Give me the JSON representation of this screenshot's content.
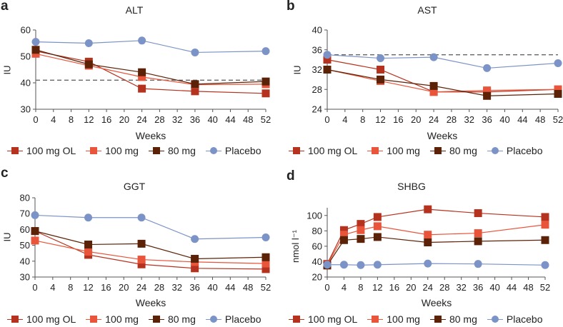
{
  "colors": {
    "100 mg OL": "#b5321e",
    "100 mg": "#e8553a",
    "80 mg": "#5c2208",
    "Placebo": "#7b93c6"
  },
  "legend": [
    {
      "label": "100 mg OL",
      "marker": "square"
    },
    {
      "label": "100 mg",
      "marker": "square"
    },
    {
      "label": "80 mg",
      "marker": "square"
    },
    {
      "label": "Placebo",
      "marker": "circle"
    }
  ],
  "chart_data": [
    {
      "panel": "a",
      "type": "line",
      "title": "ALT",
      "xlabel": "Weeks",
      "ylabel": "IU",
      "xlim": [
        0,
        52
      ],
      "xticks": [
        0,
        4,
        8,
        12,
        16,
        20,
        24,
        28,
        32,
        36,
        40,
        44,
        48,
        52
      ],
      "ylim": [
        30,
        60
      ],
      "yticks": [
        30,
        40,
        50,
        60
      ],
      "reference_line": 41,
      "x": [
        0,
        12,
        24,
        36,
        52
      ],
      "series": [
        {
          "name": "100 mg OL",
          "values": [
            52,
            48,
            37.8,
            36.8,
            36
          ]
        },
        {
          "name": "100 mg",
          "values": [
            51,
            46.5,
            42.2,
            39.3,
            39.5
          ]
        },
        {
          "name": "80 mg",
          "values": [
            52.5,
            47,
            44,
            39.5,
            40.5
          ]
        },
        {
          "name": "Placebo",
          "values": [
            55.5,
            55,
            56,
            51.5,
            52
          ]
        }
      ]
    },
    {
      "panel": "b",
      "type": "line",
      "title": "AST",
      "xlabel": "Weeks",
      "ylabel": "IU",
      "xlim": [
        0,
        52
      ],
      "xticks": [
        0,
        4,
        8,
        12,
        16,
        20,
        24,
        28,
        32,
        36,
        40,
        44,
        48,
        52
      ],
      "ylim": [
        24,
        40
      ],
      "yticks": [
        24,
        28,
        32,
        36,
        40
      ],
      "reference_line": 35,
      "x": [
        0,
        12,
        24,
        36,
        52
      ],
      "series": [
        {
          "name": "100 mg OL",
          "values": [
            34,
            32,
            27.5,
            27.5,
            28
          ]
        },
        {
          "name": "100 mg",
          "values": [
            32,
            29.7,
            27.5,
            27.8,
            28
          ]
        },
        {
          "name": "80 mg",
          "values": [
            32,
            30,
            28.7,
            26.7,
            27.1
          ]
        },
        {
          "name": "Placebo",
          "values": [
            35,
            34.3,
            34.5,
            32.3,
            33.3
          ]
        }
      ]
    },
    {
      "panel": "c",
      "type": "line",
      "title": "GGT",
      "xlabel": "Weeks",
      "ylabel": "IU",
      "xlim": [
        0,
        52
      ],
      "xticks": [
        0,
        4,
        8,
        12,
        16,
        20,
        24,
        28,
        32,
        36,
        40,
        44,
        48,
        52
      ],
      "ylim": [
        30,
        80
      ],
      "yticks": [
        30,
        40,
        50,
        60,
        70,
        80
      ],
      "x": [
        0,
        12,
        24,
        36,
        52
      ],
      "series": [
        {
          "name": "100 mg OL",
          "values": [
            59,
            44,
            38,
            35.5,
            35
          ]
        },
        {
          "name": "100 mg",
          "values": [
            53,
            46,
            41,
            39.5,
            38.5
          ]
        },
        {
          "name": "80 mg",
          "values": [
            59,
            50.5,
            51,
            41.5,
            42.5
          ]
        },
        {
          "name": "Placebo",
          "values": [
            69,
            67.5,
            67.5,
            54,
            55
          ]
        }
      ]
    },
    {
      "panel": "d",
      "type": "line",
      "title": "SHBG",
      "xlabel": "Weeks",
      "ylabel": "nmol l⁻¹",
      "xlim": [
        0,
        52
      ],
      "xticks": [
        0,
        4,
        8,
        12,
        16,
        20,
        24,
        28,
        32,
        36,
        40,
        44,
        48,
        52
      ],
      "ylim": [
        20,
        110
      ],
      "yticks": [
        20,
        40,
        60,
        80,
        100
      ],
      "x": [
        0,
        4,
        8,
        12,
        24,
        36,
        52
      ],
      "series": [
        {
          "name": "100 mg OL",
          "values": [
            37,
            81,
            89,
            98,
            108,
            103,
            98
          ]
        },
        {
          "name": "100 mg",
          "values": [
            36,
            75,
            81,
            86,
            75,
            77,
            88
          ]
        },
        {
          "name": "80 mg",
          "values": [
            35,
            68,
            69.5,
            72,
            65,
            66.5,
            68
          ]
        },
        {
          "name": "Placebo",
          "values": [
            36,
            36,
            35.5,
            36,
            37.5,
            37,
            35.5
          ]
        }
      ]
    }
  ]
}
